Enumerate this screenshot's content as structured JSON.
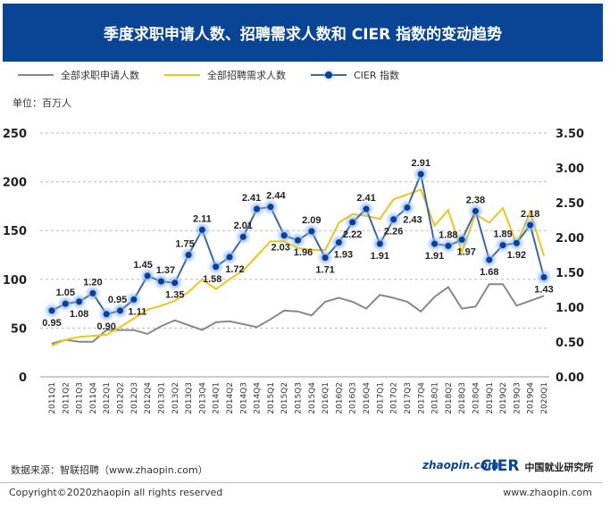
{
  "title": "季度求职申请人数、招聘需求人数和 CIER 指数的变动趋势",
  "unit": "单位：百万人",
  "source": "数据来源：智联招聘（www.zhaopin.com）",
  "logo_zhaopin": "zhaopin.com",
  "logo_cier": "CIER",
  "logo_cier_cn": "中国就业研究所",
  "copyright": "Copyright©2020zhaopin all rights reserved",
  "site": "www.zhaopin.com",
  "colors": {
    "header": "#0a4595",
    "applicants": "#888888",
    "demand": "#f0c419",
    "cier": "#3b67a8"
  },
  "chart_data": {
    "type": "line",
    "categories": [
      "2011Q1",
      "2011Q2",
      "2011Q3",
      "2011Q4",
      "2012Q1",
      "2012Q2",
      "2012Q3",
      "2012Q4",
      "2013Q1",
      "2013Q2",
      "2013Q3",
      "2013Q4",
      "2014Q1",
      "2014Q2",
      "2014Q3",
      "2014Q4",
      "2015Q1",
      "2015Q2",
      "2015Q3",
      "2015Q4",
      "2016Q1",
      "2016Q2",
      "2016Q3",
      "2016Q4",
      "2017Q1",
      "2017Q2",
      "2017Q3",
      "2017Q4",
      "2018Q1",
      "2018Q2",
      "2018Q3",
      "2018Q4",
      "2019Q1",
      "2019Q2",
      "2019Q3",
      "2019Q4",
      "2020Q1"
    ],
    "left_axis": {
      "ylim": [
        0,
        250
      ],
      "ticks": [
        "0",
        "50",
        "100",
        "150",
        "200",
        "250"
      ]
    },
    "right_axis": {
      "ylim": [
        0,
        3.5
      ],
      "ticks": [
        "0.00",
        "0.50",
        "1.00",
        "1.50",
        "2.00",
        "2.50",
        "3.00",
        "3.50"
      ]
    },
    "grid": true,
    "legend": "top",
    "series": [
      {
        "name": "全部求职申请人数",
        "axis": "left",
        "values": [
          34,
          38,
          36,
          36,
          48,
          48,
          48,
          44,
          52,
          58,
          53,
          48,
          56,
          57,
          54,
          51,
          59,
          68,
          67,
          63,
          77,
          81,
          77,
          70,
          84,
          81,
          77,
          67,
          82,
          92,
          70,
          72,
          95,
          95,
          73,
          78,
          83
        ]
      },
      {
        "name": "全部招聘需求人数",
        "axis": "left",
        "values": [
          32,
          38,
          41,
          42,
          43,
          51,
          60,
          69,
          73,
          78,
          87,
          100,
          90,
          100,
          109,
          124,
          139,
          139,
          132,
          130,
          130,
          158,
          167,
          165,
          162,
          182,
          187,
          192,
          155,
          171,
          128,
          167,
          158,
          173,
          136,
          169,
          124
        ]
      },
      {
        "name": "CIER 指数",
        "axis": "right",
        "values": [
          0.95,
          1.05,
          1.08,
          1.2,
          0.9,
          0.95,
          1.11,
          1.45,
          1.37,
          1.35,
          1.75,
          2.11,
          1.58,
          1.72,
          2.01,
          2.41,
          2.44,
          2.03,
          1.96,
          2.09,
          1.71,
          1.93,
          2.22,
          2.41,
          1.91,
          2.26,
          2.43,
          2.91,
          1.91,
          1.88,
          1.97,
          2.38,
          1.68,
          1.89,
          1.92,
          2.18,
          1.43
        ],
        "labels": [
          "0.95",
          "1.05",
          "1.08",
          "1.20",
          "0.90",
          "0.95",
          "1.11",
          "1.45",
          "1.37",
          "1.35",
          "1.75",
          "2.11",
          "1.58",
          "1.72",
          "2.01",
          "2.41",
          "2.44",
          "2.03",
          "1.96",
          "2.09",
          "1.71",
          "1.93",
          "2.22",
          "2.41",
          "1.91",
          "2.26",
          "2.43",
          "2.91",
          "1.91",
          "1.88",
          "1.97",
          "2.38",
          "1.68",
          "1.89",
          "1.92",
          "2.18",
          "1.43"
        ]
      }
    ]
  }
}
